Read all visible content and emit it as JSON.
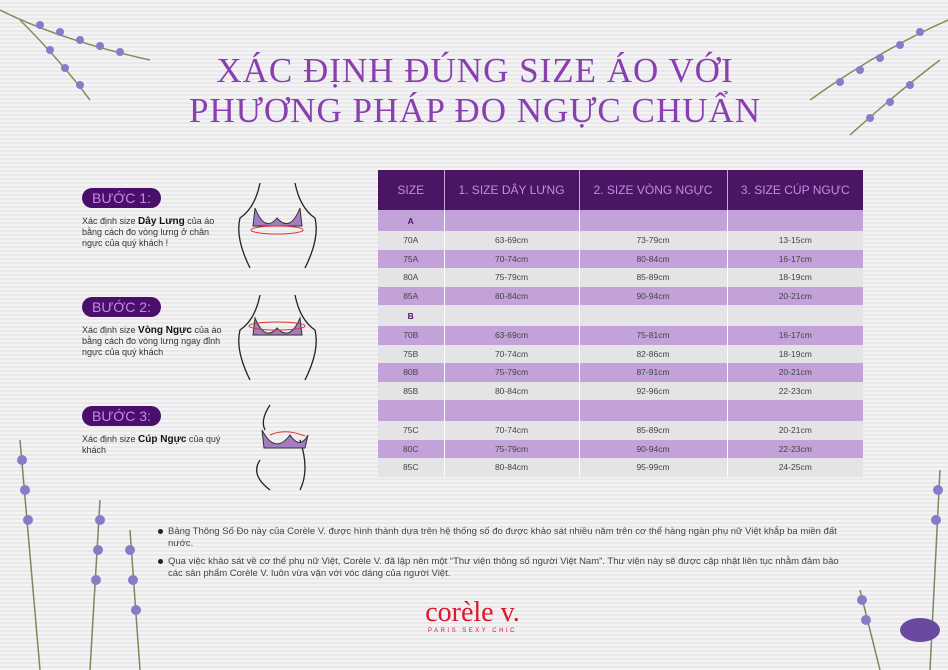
{
  "title": {
    "line1": "XÁC ĐỊNH ĐÚNG SIZE ÁO VỚI",
    "line2": "PHƯƠNG PHÁP ĐO NGỰC CHUẨN"
  },
  "steps": [
    {
      "label": "BƯỚC 1:",
      "pre": "Xác định size ",
      "bold": "Dây Lưng",
      "post": " của áo bằng cách đo vòng lưng ở chân ngực của quý khách !"
    },
    {
      "label": "BƯỚC 2:",
      "pre": "Xác định size ",
      "bold": "Vòng Ngực",
      "post": " của áo bằng cách đo vòng lưng ngay đỉnh ngực của quý khách"
    },
    {
      "label": "BƯỚC 3:",
      "pre": "Xác định size ",
      "bold": "Cúp Ngực",
      "post": " của quý khách"
    }
  ],
  "table": {
    "headers": [
      "SIZE",
      "1. SIZE DÂY LƯNG",
      "2. SIZE VÒNG NGỰC",
      "3. SIZE CÚP NGỰC"
    ],
    "rows": [
      {
        "group": true,
        "cells": [
          "A",
          "",
          "",
          ""
        ]
      },
      {
        "cells": [
          "70A",
          "63-69cm",
          "73-79cm",
          "13-15cm"
        ]
      },
      {
        "cells": [
          "75A",
          "70-74cm",
          "80-84cm",
          "16-17cm"
        ]
      },
      {
        "cells": [
          "80A",
          "75-79cm",
          "85-89cm",
          "18-19cm"
        ]
      },
      {
        "cells": [
          "85A",
          "80-84cm",
          "90-94cm",
          "20-21cm"
        ]
      },
      {
        "group": true,
        "cells": [
          "B",
          "",
          "",
          ""
        ]
      },
      {
        "cells": [
          "70B",
          "63-69cm",
          "75-81cm",
          "16-17cm"
        ]
      },
      {
        "cells": [
          "75B",
          "70-74cm",
          "82-86cm",
          "18-19cm"
        ]
      },
      {
        "cells": [
          "80B",
          "75-79cm",
          "87-91cm",
          "20-21cm"
        ]
      },
      {
        "cells": [
          "85B",
          "80-84cm",
          "92-96cm",
          "22-23cm"
        ]
      },
      {
        "group": true,
        "cells": [
          "",
          "",
          "",
          ""
        ]
      },
      {
        "cells": [
          "75C",
          "70-74cm",
          "85-89cm",
          "20-21cm"
        ]
      },
      {
        "cells": [
          "80C",
          "75-79cm",
          "90-94cm",
          "22-23cm"
        ]
      },
      {
        "cells": [
          "85C",
          "80-84cm",
          "95-99cm",
          "24-25cm"
        ]
      }
    ]
  },
  "notes": [
    "Bảng Thông Số Đo này của Corèle V. được hình thành dựa trên hệ thống số đo được khảo sát nhiều năm trên cơ thể hàng ngàn phụ nữ Việt khắp ba miền đất nước.",
    "Qua việc khảo sát về cơ thể phụ nữ Việt, Corèle V. đã lập nên một “Thư viện thông số người Việt Nam”. Thư viện này sẽ được cập nhật liên tục nhằm đảm bảo các sản phẩm Corèle V. luôn vừa vặn với vóc dáng của người Việt."
  ],
  "logo": {
    "name": "corèle v.",
    "tagline": "PARIS SEXY CHIC"
  },
  "colors": {
    "title": "#8a3fb0",
    "header": "#4a1663",
    "row_purple": "#c3a2d9",
    "row_grey": "#e4e3e5",
    "logo": "#e0142a"
  }
}
